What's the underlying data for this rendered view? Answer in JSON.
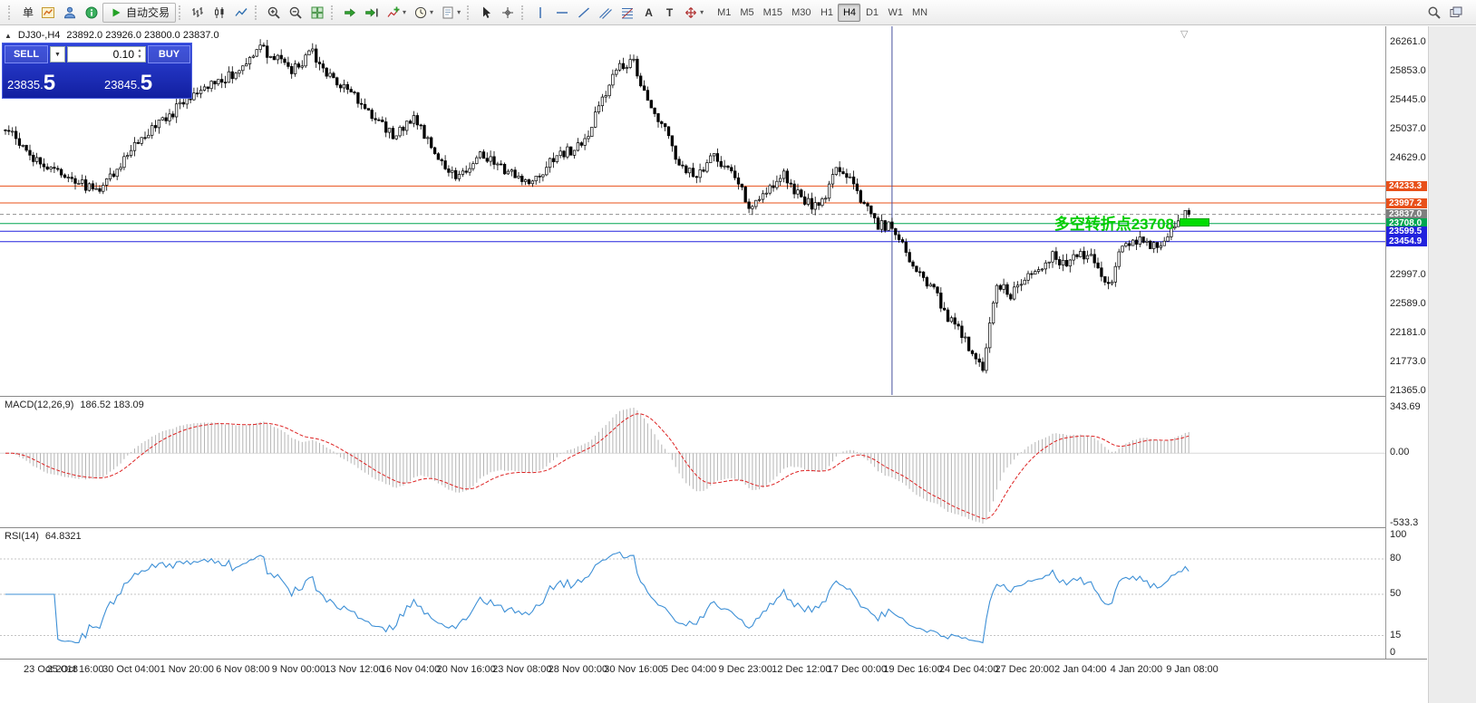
{
  "icons": {
    "header_marker": "▲",
    "scroll_to_end": "▽",
    "trade_dropdown": "▼",
    "spin_up": "▲",
    "spin_down": "▼",
    "toolbar_dropdown": "▾"
  },
  "toolbar": {
    "groups": [
      {
        "name": "standard",
        "items": [
          {
            "name": "new-order-button",
            "label": "单"
          },
          {
            "name": "new-chart-button",
            "icon": "new-chart-icon"
          },
          {
            "name": "profiles-button",
            "icon": "profiles-icon"
          },
          {
            "name": "data-window-button",
            "icon": "info-icon"
          },
          {
            "name": "autotrade-button",
            "icon": "play-icon",
            "label": "自动交易",
            "raised": true
          }
        ]
      },
      {
        "name": "chart-types",
        "items": [
          {
            "name": "bar-chart-button",
            "icon": "bar-chart-icon"
          },
          {
            "name": "candlestick-button",
            "icon": "candlestick-icon"
          },
          {
            "name": "line-chart-button",
            "icon": "line-chart-icon"
          }
        ]
      },
      {
        "name": "zoom",
        "items": [
          {
            "name": "zoom-in-button",
            "icon": "zoom-in-icon"
          },
          {
            "name": "zoom-out-button",
            "icon": "zoom-out-icon"
          },
          {
            "name": "tile-windows-button",
            "icon": "tile-windows-icon"
          }
        ]
      },
      {
        "name": "chart-tools",
        "items": [
          {
            "name": "auto-scroll-button",
            "icon": "auto-scroll-icon"
          },
          {
            "name": "chart-shift-button",
            "icon": "chart-shift-icon"
          },
          {
            "name": "indicators-button",
            "icon": "indicators-icon",
            "dropdown": true
          },
          {
            "name": "periods-button",
            "icon": "clock-icon",
            "dropdown": true
          },
          {
            "name": "templates-button",
            "icon": "template-icon",
            "dropdown": true
          }
        ]
      },
      {
        "name": "cursors",
        "items": [
          {
            "name": "cursor-button",
            "icon": "cursor-icon"
          },
          {
            "name": "crosshair-button",
            "icon": "crosshair-icon"
          }
        ]
      },
      {
        "name": "objects",
        "items": [
          {
            "name": "vertical-line-button",
            "icon": "vertical-line-icon"
          },
          {
            "name": "horizontal-line-button",
            "icon": "horizontal-line-icon"
          },
          {
            "name": "trendline-button",
            "icon": "trendline-icon"
          },
          {
            "name": "channel-button",
            "icon": "channel-icon"
          },
          {
            "name": "fibonacci-button",
            "icon": "fibonacci-icon"
          },
          {
            "name": "text-button",
            "glyph": "A"
          },
          {
            "name": "label-button",
            "glyph": "T"
          },
          {
            "name": "arrows-button",
            "icon": "arrows-icon",
            "dropdown": true
          }
        ]
      }
    ],
    "timeframes": {
      "items": [
        "M1",
        "M5",
        "M15",
        "M30",
        "H1",
        "H4",
        "D1",
        "W1",
        "MN"
      ],
      "active": "H4"
    },
    "right_items": [
      {
        "name": "search-button",
        "icon": "search-icon"
      },
      {
        "name": "window-list-button",
        "icon": "windows-icon"
      }
    ]
  },
  "chart_header": {
    "symbol_timeframe": "DJ30-,H4",
    "ohlc": "23892.0 23926.0 23800.0 23837.0"
  },
  "trade_panel": {
    "sell_label": "SELL",
    "buy_label": "BUY",
    "lot_value": "0.10",
    "sell_price_small": "23835.",
    "sell_price_big": "5",
    "buy_price_small": "23845.",
    "buy_price_big": "5"
  },
  "chart_data": {
    "type": "candlestick",
    "symbol": "DJ30-",
    "timeframe": "H4",
    "last_bar": {
      "open": 23892.0,
      "high": 23926.0,
      "low": 23800.0,
      "close": 23837.0
    },
    "last_price": 23837.0,
    "visible_range": {
      "price_min": 21365.0,
      "price_max": 26261.0
    },
    "y_ticks": [
      "26261.0",
      "25853.0",
      "25445.0",
      "25037.0",
      "24629.0",
      "22997.0",
      "22589.0",
      "22181.0",
      "21773.0",
      "21365.0"
    ],
    "x_labels": [
      "23 Oct 2018",
      "25 Oct 16:00",
      "30 Oct 04:00",
      "1 Nov 20:00",
      "6 Nov 08:00",
      "9 Nov 00:00",
      "13 Nov 12:00",
      "16 Nov 04:00",
      "20 Nov 16:00",
      "23 Nov 08:00",
      "28 Nov 00:00",
      "30 Nov 16:00",
      "5 Dec 04:00",
      "9 Dec 23:00",
      "12 Dec 12:00",
      "17 Dec 00:00",
      "19 Dec 16:00",
      "24 Dec 04:00",
      "27 Dec 20:00",
      "2 Jan 04:00",
      "4 Jan 20:00",
      "9 Jan 08:00"
    ],
    "candle_count": 340,
    "candle_colors": {
      "up_fill": "#ffffff",
      "down_fill": "#000000",
      "outline": "#000000"
    },
    "price_path_anchors": [
      [
        0,
        25050
      ],
      [
        8,
        24650
      ],
      [
        18,
        24350
      ],
      [
        27,
        24150
      ],
      [
        32,
        24500
      ],
      [
        37,
        24800
      ],
      [
        46,
        25200
      ],
      [
        58,
        25650
      ],
      [
        65,
        25800
      ],
      [
        73,
        26150
      ],
      [
        77,
        26050
      ],
      [
        82,
        25850
      ],
      [
        88,
        26100
      ],
      [
        93,
        25750
      ],
      [
        103,
        25350
      ],
      [
        111,
        24950
      ],
      [
        117,
        25150
      ],
      [
        125,
        24600
      ],
      [
        130,
        24350
      ],
      [
        136,
        24700
      ],
      [
        143,
        24450
      ],
      [
        150,
        24250
      ],
      [
        158,
        24650
      ],
      [
        165,
        24800
      ],
      [
        170,
        25300
      ],
      [
        175,
        25900
      ],
      [
        180,
        26000
      ],
      [
        184,
        25400
      ],
      [
        189,
        25000
      ],
      [
        193,
        24550
      ],
      [
        198,
        24350
      ],
      [
        203,
        24650
      ],
      [
        208,
        24450
      ],
      [
        213,
        23950
      ],
      [
        218,
        24200
      ],
      [
        223,
        24400
      ],
      [
        228,
        24050
      ],
      [
        233,
        23900
      ],
      [
        238,
        24450
      ],
      [
        242,
        24300
      ],
      [
        246,
        23950
      ],
      [
        250,
        23700
      ],
      [
        254,
        23650
      ],
      [
        258,
        23300
      ],
      [
        262,
        23000
      ],
      [
        266,
        22750
      ],
      [
        270,
        22400
      ],
      [
        274,
        22150
      ],
      [
        277,
        21900
      ],
      [
        280,
        21600
      ],
      [
        284,
        22900
      ],
      [
        288,
        22700
      ],
      [
        292,
        22950
      ],
      [
        296,
        23100
      ],
      [
        300,
        23250
      ],
      [
        304,
        23100
      ],
      [
        308,
        23300
      ],
      [
        312,
        23200
      ],
      [
        316,
        22800
      ],
      [
        320,
        23400
      ],
      [
        325,
        23500
      ],
      [
        330,
        23350
      ],
      [
        334,
        23600
      ],
      [
        339,
        23837
      ]
    ],
    "levels": [
      {
        "price": 24233.3,
        "label": "24233.3",
        "color": "#e8501a",
        "style": "solid"
      },
      {
        "price": 23997.2,
        "label": "23997.2",
        "color": "#e8501a",
        "style": "solid"
      },
      {
        "price": 23837.0,
        "label": "23837.0",
        "color": "#7f7f7f",
        "style": "current"
      },
      {
        "price": 23708.0,
        "label": "23708.0",
        "color": "#00a651",
        "style": "solid"
      },
      {
        "price": 23599.5,
        "label": "23599.5",
        "color": "#2222dd",
        "style": "solid"
      },
      {
        "price": 23454.9,
        "label": "23454.9",
        "color": "#2222dd",
        "style": "solid"
      }
    ],
    "vertical_line_index": 254,
    "vertical_line_color": "#46509e",
    "annotation": {
      "text": "多空转折点23708",
      "color": "#00cc00",
      "marker_color": "#00dd00"
    },
    "indicators": [
      {
        "name": "MACD",
        "label": "MACD(12,26,9)",
        "values_text": "186.52 183.09",
        "params": [
          12,
          26,
          9
        ],
        "y_ticks": [
          "343.69",
          "0.00",
          "-533.3"
        ],
        "y_max": 343.69,
        "y_min": -533.3,
        "histogram_color": "#b4b4b4",
        "signal_color": "#dd2222"
      },
      {
        "name": "RSI",
        "label": "RSI(14)",
        "values_text": "64.8321",
        "period": 14,
        "y_ticks": [
          "100",
          "80",
          "50",
          "15",
          "0"
        ],
        "levels": [
          80,
          50,
          15
        ],
        "line_color": "#3c8fd6"
      }
    ]
  }
}
